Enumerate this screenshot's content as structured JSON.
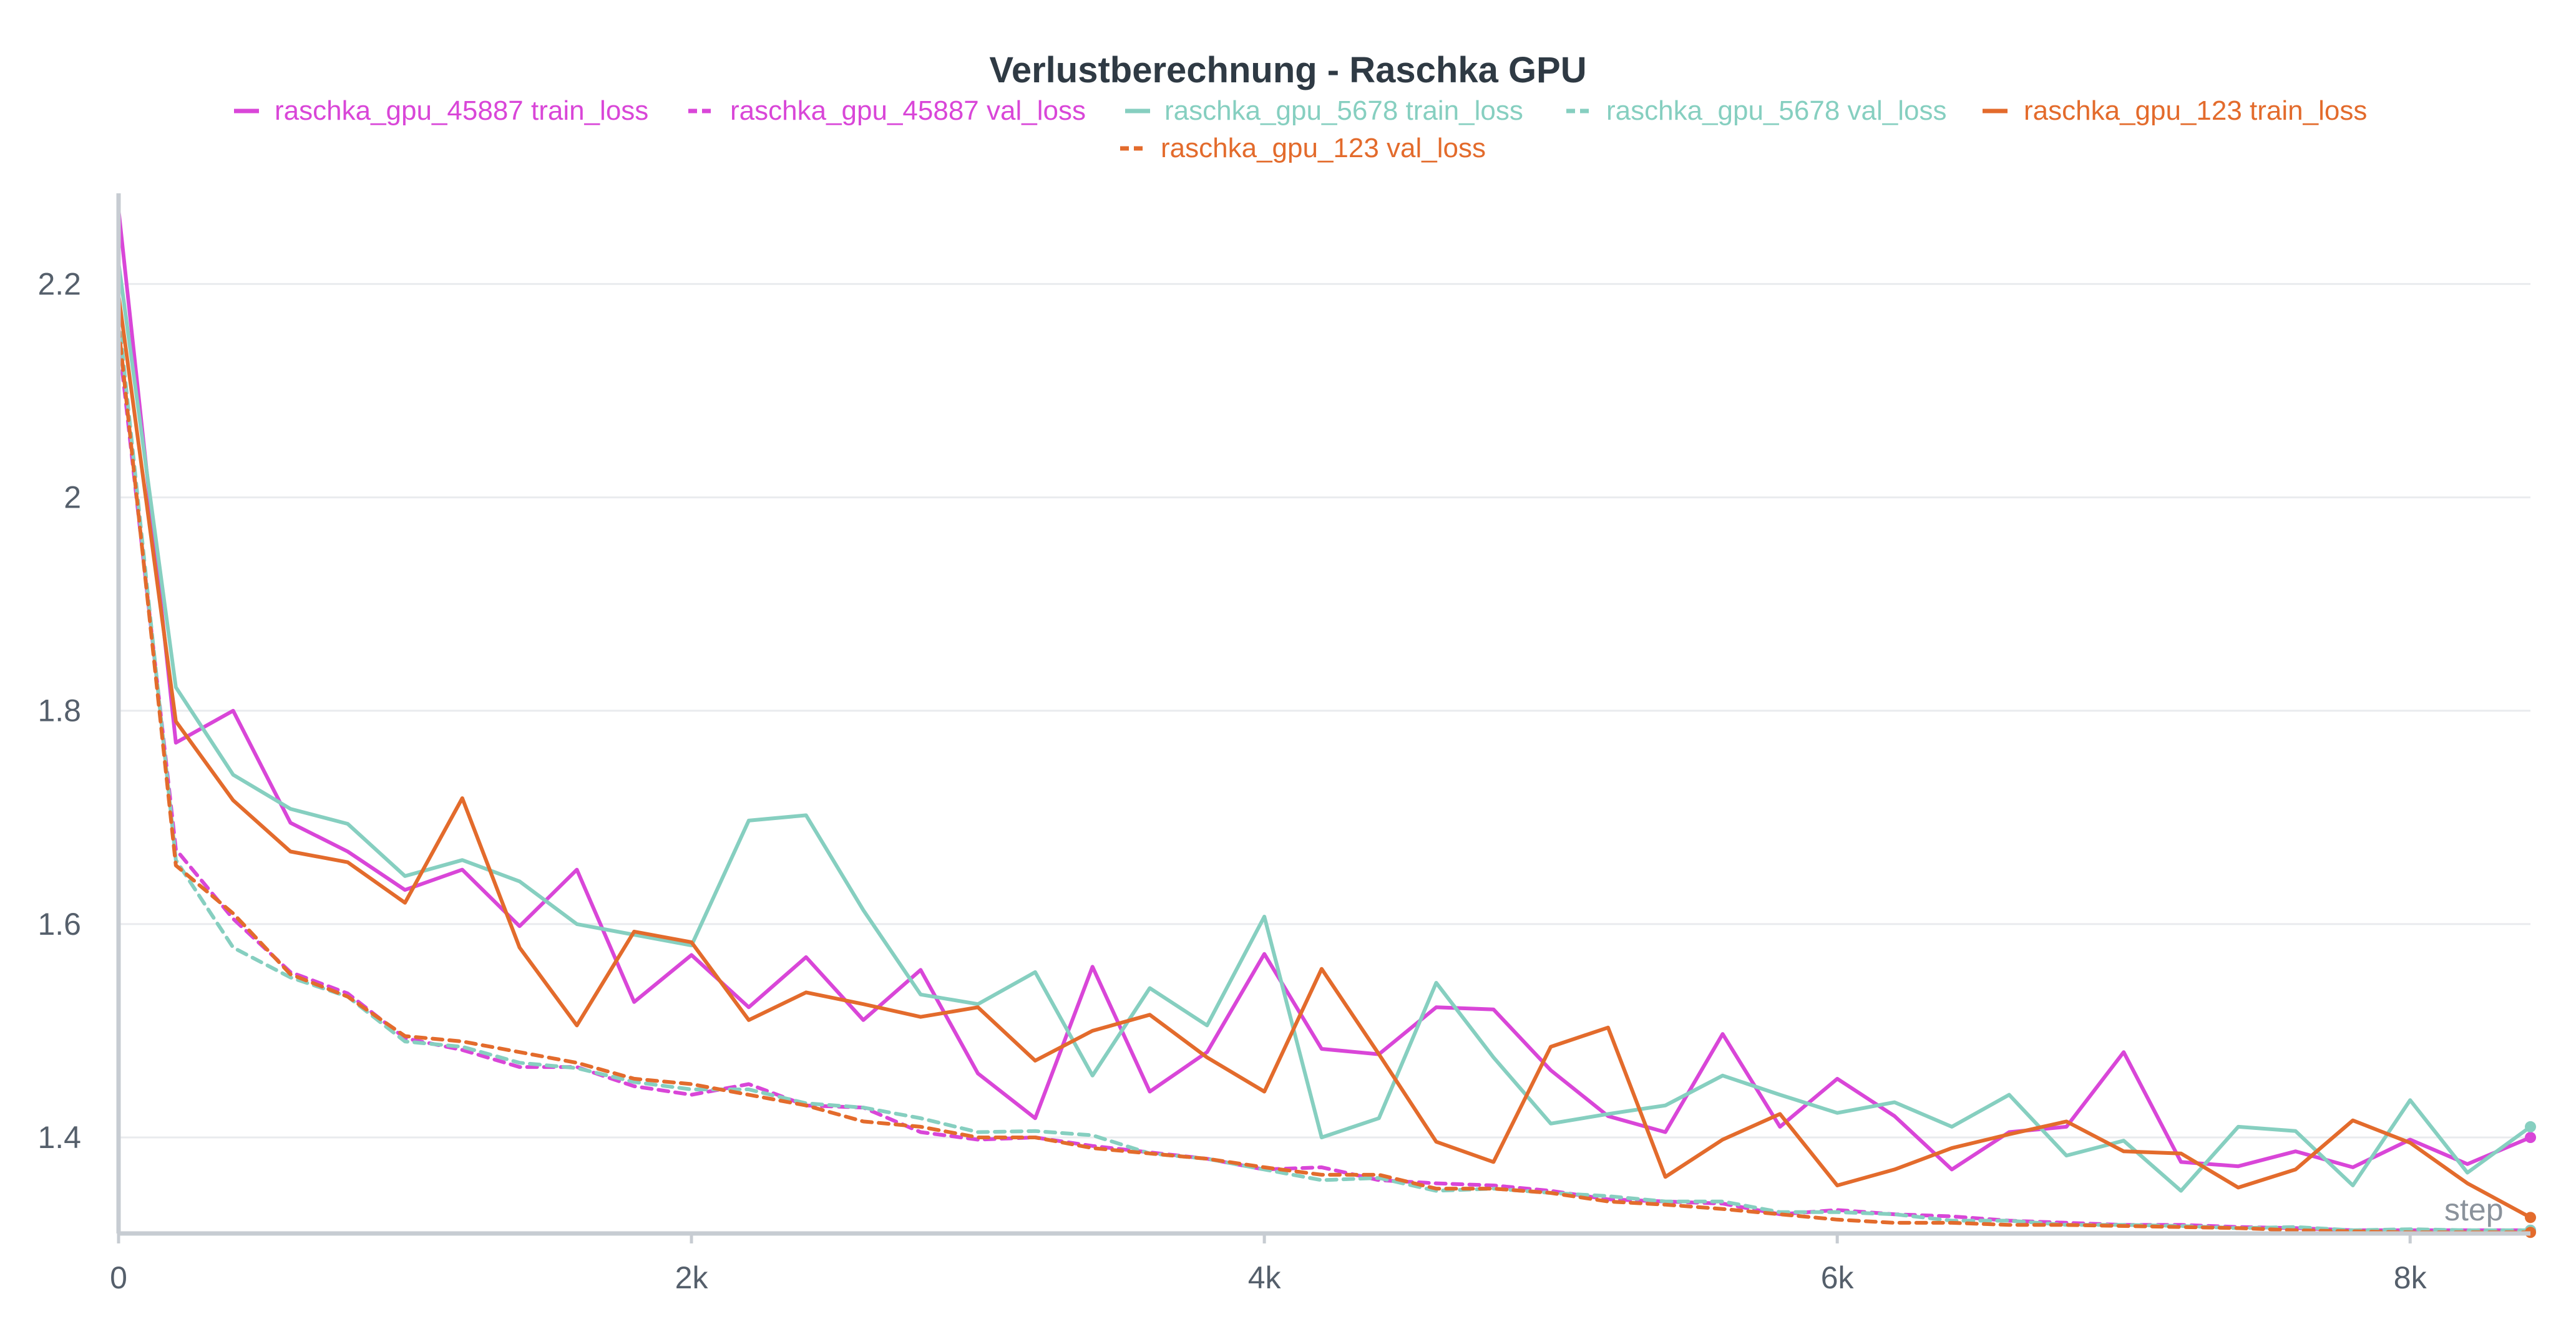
{
  "chart_data": {
    "type": "line",
    "title": "Verlustberechnung - Raschka GPU",
    "xlabel": "step",
    "ylabel": "",
    "xlim": [
      0,
      8420
    ],
    "ylim": [
      1.31,
      2.285
    ],
    "grid": true,
    "legend_position": "top-center",
    "x_ticks": [
      {
        "value": 0,
        "label": "0"
      },
      {
        "value": 2000,
        "label": "2k"
      },
      {
        "value": 4000,
        "label": "4k"
      },
      {
        "value": 6000,
        "label": "6k"
      },
      {
        "value": 8000,
        "label": "8k"
      }
    ],
    "y_ticks": [
      {
        "value": 1.4,
        "label": "1.4"
      },
      {
        "value": 1.6,
        "label": "1.6"
      },
      {
        "value": 1.8,
        "label": "1.8"
      },
      {
        "value": 2.0,
        "label": "2"
      },
      {
        "value": 2.2,
        "label": "2.2"
      }
    ],
    "series": [
      {
        "name": "raschka_gpu_45887 train_loss",
        "color": "#d946d8",
        "dash": "solid",
        "points": [
          [
            0,
            2.27
          ],
          [
            200,
            1.77
          ],
          [
            400,
            1.8
          ],
          [
            600,
            1.695
          ],
          [
            800,
            1.668
          ],
          [
            1000,
            1.632
          ],
          [
            1200,
            1.651
          ],
          [
            1400,
            1.598
          ],
          [
            1600,
            1.651
          ],
          [
            1800,
            1.527
          ],
          [
            2000,
            1.571
          ],
          [
            2200,
            1.522
          ],
          [
            2400,
            1.569
          ],
          [
            2600,
            1.51
          ],
          [
            2800,
            1.557
          ],
          [
            3000,
            1.46
          ],
          [
            3200,
            1.418
          ],
          [
            3400,
            1.56
          ],
          [
            3600,
            1.443
          ],
          [
            3800,
            1.48
          ],
          [
            4000,
            1.572
          ],
          [
            4200,
            1.483
          ],
          [
            4400,
            1.478
          ],
          [
            4600,
            1.522
          ],
          [
            4800,
            1.52
          ],
          [
            5000,
            1.463
          ],
          [
            5200,
            1.42
          ],
          [
            5400,
            1.405
          ],
          [
            5600,
            1.497
          ],
          [
            5800,
            1.41
          ],
          [
            6000,
            1.455
          ],
          [
            6200,
            1.42
          ],
          [
            6400,
            1.37
          ],
          [
            6600,
            1.405
          ],
          [
            6800,
            1.41
          ],
          [
            7000,
            1.48
          ],
          [
            7200,
            1.377
          ],
          [
            7400,
            1.373
          ],
          [
            7600,
            1.387
          ],
          [
            7800,
            1.372
          ],
          [
            8000,
            1.398
          ],
          [
            8200,
            1.375
          ],
          [
            8420,
            1.4
          ]
        ]
      },
      {
        "name": "raschka_gpu_45887 val_loss",
        "color": "#d946d8",
        "dash": "dashed",
        "points": [
          [
            0,
            2.15
          ],
          [
            200,
            1.67
          ],
          [
            400,
            1.605
          ],
          [
            600,
            1.555
          ],
          [
            800,
            1.535
          ],
          [
            1000,
            1.493
          ],
          [
            1200,
            1.482
          ],
          [
            1400,
            1.466
          ],
          [
            1600,
            1.466
          ],
          [
            1800,
            1.448
          ],
          [
            2000,
            1.44
          ],
          [
            2200,
            1.45
          ],
          [
            2400,
            1.43
          ],
          [
            2600,
            1.428
          ],
          [
            2800,
            1.405
          ],
          [
            3000,
            1.398
          ],
          [
            3200,
            1.4
          ],
          [
            3400,
            1.392
          ],
          [
            3600,
            1.386
          ],
          [
            3800,
            1.38
          ],
          [
            4000,
            1.37
          ],
          [
            4200,
            1.372
          ],
          [
            4400,
            1.36
          ],
          [
            4600,
            1.357
          ],
          [
            4800,
            1.355
          ],
          [
            5000,
            1.35
          ],
          [
            5200,
            1.342
          ],
          [
            5400,
            1.34
          ],
          [
            5600,
            1.338
          ],
          [
            5800,
            1.328
          ],
          [
            6000,
            1.332
          ],
          [
            6200,
            1.328
          ],
          [
            6400,
            1.326
          ],
          [
            6600,
            1.322
          ],
          [
            6800,
            1.32
          ],
          [
            7000,
            1.318
          ],
          [
            7200,
            1.318
          ],
          [
            7400,
            1.316
          ],
          [
            7600,
            1.315
          ],
          [
            7800,
            1.313
          ],
          [
            8000,
            1.313
          ],
          [
            8200,
            1.313
          ],
          [
            8420,
            1.313
          ]
        ]
      },
      {
        "name": "raschka_gpu_5678 train_loss",
        "color": "#86cfc0",
        "dash": "solid",
        "points": [
          [
            0,
            2.22
          ],
          [
            200,
            1.822
          ],
          [
            400,
            1.74
          ],
          [
            600,
            1.708
          ],
          [
            800,
            1.694
          ],
          [
            1000,
            1.645
          ],
          [
            1200,
            1.66
          ],
          [
            1400,
            1.64
          ],
          [
            1600,
            1.6
          ],
          [
            1800,
            1.59
          ],
          [
            2000,
            1.58
          ],
          [
            2200,
            1.697
          ],
          [
            2400,
            1.702
          ],
          [
            2600,
            1.613
          ],
          [
            2800,
            1.534
          ],
          [
            3000,
            1.525
          ],
          [
            3200,
            1.555
          ],
          [
            3400,
            1.458
          ],
          [
            3600,
            1.54
          ],
          [
            3800,
            1.505
          ],
          [
            4000,
            1.607
          ],
          [
            4200,
            1.4
          ],
          [
            4400,
            1.418
          ],
          [
            4600,
            1.545
          ],
          [
            4800,
            1.475
          ],
          [
            5000,
            1.413
          ],
          [
            5200,
            1.422
          ],
          [
            5400,
            1.43
          ],
          [
            5600,
            1.458
          ],
          [
            5800,
            1.44
          ],
          [
            6000,
            1.423
          ],
          [
            6200,
            1.433
          ],
          [
            6400,
            1.41
          ],
          [
            6600,
            1.44
          ],
          [
            6800,
            1.383
          ],
          [
            7000,
            1.397
          ],
          [
            7200,
            1.35
          ],
          [
            7400,
            1.41
          ],
          [
            7600,
            1.406
          ],
          [
            7800,
            1.355
          ],
          [
            8000,
            1.435
          ],
          [
            8200,
            1.367
          ],
          [
            8420,
            1.41
          ]
        ]
      },
      {
        "name": "raschka_gpu_5678 val_loss",
        "color": "#86cfc0",
        "dash": "dashed",
        "points": [
          [
            0,
            2.17
          ],
          [
            200,
            1.66
          ],
          [
            400,
            1.578
          ],
          [
            600,
            1.55
          ],
          [
            800,
            1.532
          ],
          [
            1000,
            1.49
          ],
          [
            1200,
            1.485
          ],
          [
            1400,
            1.47
          ],
          [
            1600,
            1.465
          ],
          [
            1800,
            1.452
          ],
          [
            2000,
            1.445
          ],
          [
            2200,
            1.445
          ],
          [
            2400,
            1.432
          ],
          [
            2600,
            1.428
          ],
          [
            2800,
            1.418
          ],
          [
            3000,
            1.405
          ],
          [
            3200,
            1.406
          ],
          [
            3400,
            1.402
          ],
          [
            3600,
            1.385
          ],
          [
            3800,
            1.38
          ],
          [
            4000,
            1.37
          ],
          [
            4200,
            1.36
          ],
          [
            4400,
            1.362
          ],
          [
            4600,
            1.35
          ],
          [
            4800,
            1.352
          ],
          [
            5000,
            1.348
          ],
          [
            5200,
            1.345
          ],
          [
            5400,
            1.34
          ],
          [
            5600,
            1.34
          ],
          [
            5800,
            1.33
          ],
          [
            6000,
            1.33
          ],
          [
            6200,
            1.328
          ],
          [
            6400,
            1.322
          ],
          [
            6600,
            1.322
          ],
          [
            6800,
            1.318
          ],
          [
            7000,
            1.318
          ],
          [
            7200,
            1.317
          ],
          [
            7400,
            1.315
          ],
          [
            7600,
            1.316
          ],
          [
            7800,
            1.313
          ],
          [
            8000,
            1.314
          ],
          [
            8200,
            1.313
          ],
          [
            8420,
            1.313
          ]
        ]
      },
      {
        "name": "raschka_gpu_123 train_loss",
        "color": "#e36b2c",
        "dash": "solid",
        "points": [
          [
            0,
            2.19
          ],
          [
            200,
            1.79
          ],
          [
            400,
            1.716
          ],
          [
            600,
            1.668
          ],
          [
            800,
            1.658
          ],
          [
            1000,
            1.62
          ],
          [
            1200,
            1.718
          ],
          [
            1400,
            1.578
          ],
          [
            1600,
            1.505
          ],
          [
            1800,
            1.593
          ],
          [
            2000,
            1.583
          ],
          [
            2200,
            1.51
          ],
          [
            2400,
            1.536
          ],
          [
            2600,
            1.525
          ],
          [
            2800,
            1.513
          ],
          [
            3000,
            1.522
          ],
          [
            3200,
            1.472
          ],
          [
            3400,
            1.5
          ],
          [
            3600,
            1.515
          ],
          [
            3800,
            1.475
          ],
          [
            4000,
            1.443
          ],
          [
            4200,
            1.558
          ],
          [
            4400,
            1.478
          ],
          [
            4600,
            1.396
          ],
          [
            4800,
            1.377
          ],
          [
            5000,
            1.485
          ],
          [
            5200,
            1.503
          ],
          [
            5400,
            1.363
          ],
          [
            5600,
            1.398
          ],
          [
            5800,
            1.422
          ],
          [
            6000,
            1.355
          ],
          [
            6200,
            1.37
          ],
          [
            6400,
            1.39
          ],
          [
            6600,
            1.403
          ],
          [
            6800,
            1.415
          ],
          [
            7000,
            1.387
          ],
          [
            7200,
            1.385
          ],
          [
            7400,
            1.353
          ],
          [
            7600,
            1.37
          ],
          [
            7800,
            1.416
          ],
          [
            8000,
            1.395
          ],
          [
            8200,
            1.357
          ],
          [
            8420,
            1.325
          ]
        ]
      },
      {
        "name": "raschka_gpu_123 val_loss",
        "color": "#e36b2c",
        "dash": "dashed",
        "points": [
          [
            0,
            2.16
          ],
          [
            200,
            1.655
          ],
          [
            400,
            1.61
          ],
          [
            600,
            1.553
          ],
          [
            800,
            1.532
          ],
          [
            1000,
            1.495
          ],
          [
            1200,
            1.49
          ],
          [
            1400,
            1.48
          ],
          [
            1600,
            1.47
          ],
          [
            1800,
            1.455
          ],
          [
            2000,
            1.45
          ],
          [
            2200,
            1.44
          ],
          [
            2400,
            1.43
          ],
          [
            2600,
            1.415
          ],
          [
            2800,
            1.41
          ],
          [
            3000,
            1.4
          ],
          [
            3200,
            1.4
          ],
          [
            3400,
            1.39
          ],
          [
            3600,
            1.385
          ],
          [
            3800,
            1.38
          ],
          [
            4000,
            1.372
          ],
          [
            4200,
            1.365
          ],
          [
            4400,
            1.365
          ],
          [
            4600,
            1.352
          ],
          [
            4800,
            1.352
          ],
          [
            5000,
            1.348
          ],
          [
            5200,
            1.34
          ],
          [
            5400,
            1.337
          ],
          [
            5600,
            1.333
          ],
          [
            5800,
            1.328
          ],
          [
            6000,
            1.323
          ],
          [
            6200,
            1.32
          ],
          [
            6400,
            1.32
          ],
          [
            6600,
            1.318
          ],
          [
            6800,
            1.318
          ],
          [
            7000,
            1.317
          ],
          [
            7200,
            1.316
          ],
          [
            7400,
            1.315
          ],
          [
            7600,
            1.313
          ],
          [
            7800,
            1.312
          ],
          [
            8000,
            1.311
          ],
          [
            8200,
            1.311
          ],
          [
            8420,
            1.311
          ]
        ]
      }
    ]
  }
}
